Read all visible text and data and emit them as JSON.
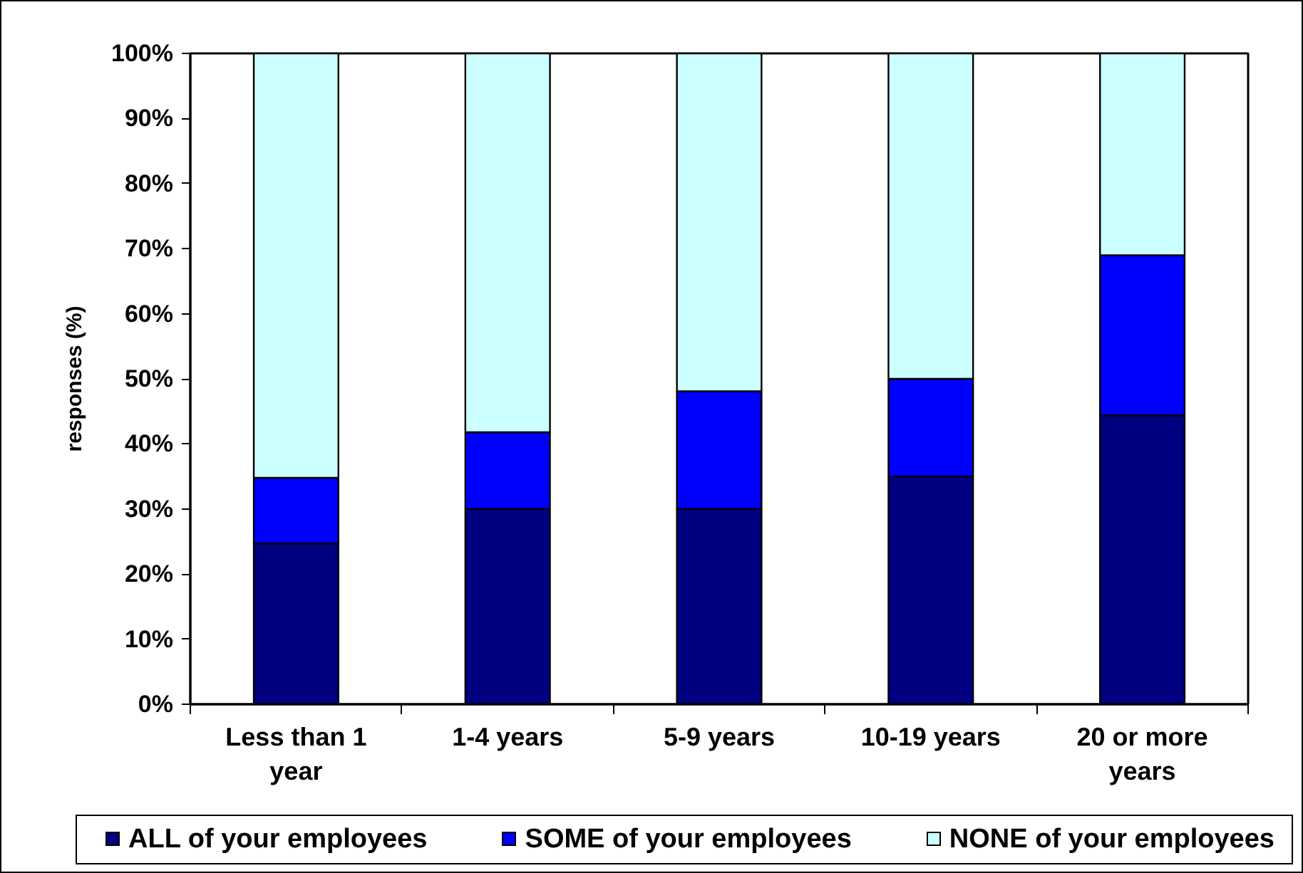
{
  "chart_data": {
    "type": "bar",
    "stacked": true,
    "ylabel": "responses (%)",
    "categories": [
      "Less than 1 year",
      "1-4 years",
      "5-9 years",
      "10-19 years",
      "20 or more years"
    ],
    "series": [
      {
        "name": "ALL of your employees",
        "color": "#000080",
        "values": [
          24.7,
          30,
          30,
          35,
          44.4
        ]
      },
      {
        "name": "SOME of your employees",
        "color": "#0000ff",
        "values": [
          10.1,
          11.8,
          18.1,
          15,
          24.6
        ]
      },
      {
        "name": "NONE of your employees",
        "color": "#ccffff",
        "values": [
          65.2,
          58.2,
          51.9,
          50,
          31
        ]
      }
    ],
    "ylim": [
      0,
      100
    ],
    "yticks": [
      {
        "value": 0,
        "label": "0%"
      },
      {
        "value": 10,
        "label": "10%"
      },
      {
        "value": 20,
        "label": "20%"
      },
      {
        "value": 30,
        "label": "30%"
      },
      {
        "value": 40,
        "label": "40%"
      },
      {
        "value": 50,
        "label": "50%"
      },
      {
        "value": 60,
        "label": "60%"
      },
      {
        "value": 70,
        "label": "70%"
      },
      {
        "value": 80,
        "label": "80%"
      },
      {
        "value": 90,
        "label": "90%"
      },
      {
        "value": 100,
        "label": "100%"
      }
    ],
    "legend": "bottom"
  }
}
